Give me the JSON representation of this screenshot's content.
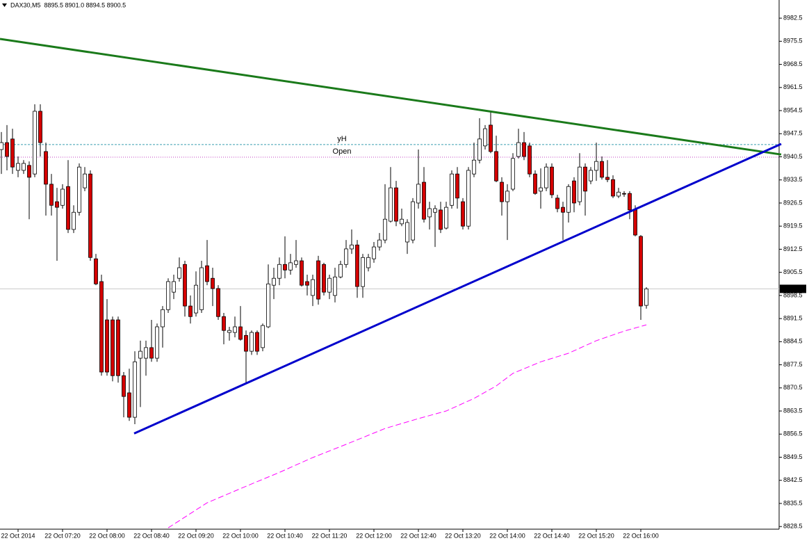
{
  "chart_data": {
    "type": "candlestick",
    "header": "DAX30,M5  8895.5 8901.0 8894.5 8900.5",
    "up_color": "#ffffff",
    "down_color": "#d40000",
    "open": [
      8942.7,
      8944.8,
      8945.9,
      8936.4,
      8936.4,
      8937.9,
      8935.3,
      8954.3,
      8942.1,
      8932.2,
      8926.9,
      8925.8,
      8931.5,
      8918.5,
      8923.7,
      8931.1,
      8935.3,
      8909.6,
      8902.7,
      8891.1,
      8891.1,
      8891.1,
      8874.2,
      8869.0,
      8861.6,
      8879.5,
      8879.5,
      8882.7,
      8879.5,
      8889.0,
      8894.2,
      8899.5,
      8903.7,
      8907.9,
      8895.3,
      8893.2,
      8894.2,
      8907.5,
      8903.7,
      8900.6,
      8892.1,
      8887.3,
      8887.3,
      8889.0,
      8886.4,
      8881.6,
      8887.3,
      8882.7,
      8889.0,
      8901.6,
      8903.7,
      8907.9,
      8906.2,
      8907.9,
      8909.0,
      8902.7,
      8898.5,
      8909.0,
      8907.9,
      8899.5,
      8898.5,
      8904.1,
      8907.9,
      8912.6,
      8913.8,
      8901.2,
      8906.9,
      8909.6,
      8913.2,
      8915.3,
      8921.0,
      8931.1,
      8920.2,
      8914.7,
      8915.3,
      8926.5,
      8932.8,
      8922.3,
      8923.7,
      8924.4,
      8918.9,
      8925.8,
      8935.3,
      8926.9,
      8919.5,
      8935.3,
      8939.5,
      8943.8,
      8950.1,
      8942.1,
      8932.8,
      8926.9,
      8930.7,
      8940.6,
      8944.8,
      8943.8,
      8935.3,
      8930.1,
      8931.1,
      8937.4,
      8928.0,
      8925.2,
      8923.7,
      8933.2,
      8926.9,
      8937.4,
      8933.2,
      8936.4,
      8939.1,
      8934.3,
      8933.6,
      8928.6,
      8929.4,
      8929.4,
      8924.4,
      8916.4,
      8895.5
    ],
    "high": [
      8948.0,
      8950.1,
      8949.0,
      8940.6,
      8939.5,
      8939.1,
      8956.4,
      8956.4,
      8944.8,
      8935.3,
      8931.1,
      8932.2,
      8939.5,
      8925.8,
      8938.5,
      8937.4,
      8936.4,
      8911.1,
      8904.8,
      8897.4,
      8892.1,
      8892.1,
      8875.3,
      8876.3,
      8881.6,
      8884.8,
      8884.8,
      8891.1,
      8890.0,
      8895.3,
      8903.7,
      8904.8,
      8910.0,
      8909.0,
      8898.5,
      8905.8,
      8909.0,
      8915.3,
      8906.9,
      8901.6,
      8893.2,
      8889.0,
      8892.1,
      8895.3,
      8887.9,
      8887.9,
      8887.9,
      8890.0,
      8907.9,
      8906.9,
      8910.0,
      8916.4,
      8911.1,
      8915.3,
      8910.0,
      8904.8,
      8904.8,
      8910.5,
      8908.4,
      8904.8,
      8906.9,
      8909.0,
      8915.3,
      8918.5,
      8915.3,
      8911.1,
      8911.1,
      8914.7,
      8917.4,
      8932.2,
      8937.4,
      8933.2,
      8924.8,
      8921.6,
      8928.0,
      8942.7,
      8937.4,
      8926.9,
      8925.8,
      8926.9,
      8926.9,
      8936.4,
      8937.4,
      8928.0,
      8937.4,
      8944.8,
      8952.2,
      8950.1,
      8954.3,
      8946.9,
      8934.3,
      8932.2,
      8941.6,
      8949.0,
      8948.0,
      8944.8,
      8936.4,
      8937.0,
      8938.5,
      8938.5,
      8929.0,
      8926.9,
      8932.2,
      8934.3,
      8941.6,
      8938.5,
      8937.4,
      8944.8,
      8940.6,
      8939.5,
      8934.9,
      8931.1,
      8930.1,
      8930.1,
      8925.8,
      8916.8,
      8901.0
    ],
    "low": [
      8935.3,
      8936.4,
      8935.3,
      8934.3,
      8935.3,
      8921.6,
      8934.3,
      8940.6,
      8922.7,
      8922.7,
      8909.0,
      8924.8,
      8917.4,
      8917.4,
      8922.7,
      8930.1,
      8909.0,
      8901.6,
      8874.2,
      8874.2,
      8872.5,
      8872.1,
      8861.6,
      8860.5,
      8859.5,
      8864.7,
      8874.2,
      8878.4,
      8878.4,
      8882.7,
      8893.2,
      8897.4,
      8902.7,
      8892.1,
      8890.0,
      8892.1,
      8893.2,
      8901.6,
      8895.3,
      8891.1,
      8883.7,
      8884.8,
      8885.8,
      8884.8,
      8872.1,
      8880.5,
      8880.5,
      8881.6,
      8888.6,
      8897.4,
      8901.6,
      8903.7,
      8904.8,
      8906.9,
      8901.2,
      8898.5,
      8895.3,
      8895.7,
      8898.5,
      8897.4,
      8896.4,
      8903.7,
      8906.9,
      8911.1,
      8897.8,
      8897.8,
      8905.8,
      8908.4,
      8912.1,
      8914.3,
      8920.6,
      8919.5,
      8919.5,
      8911.1,
      8914.3,
      8924.8,
      8920.6,
      8918.5,
      8913.2,
      8917.4,
      8918.5,
      8924.8,
      8924.8,
      8918.5,
      8918.5,
      8934.3,
      8938.5,
      8942.7,
      8941.6,
      8932.8,
      8922.7,
      8915.3,
      8930.1,
      8940.0,
      8939.5,
      8934.3,
      8929.0,
      8924.8,
      8930.1,
      8928.0,
      8923.7,
      8915.3,
      8920.6,
      8923.7,
      8925.8,
      8922.7,
      8932.2,
      8933.2,
      8933.6,
      8932.8,
      8928.0,
      8928.0,
      8928.4,
      8921.6,
      8916.4,
      8891.1,
      8894.5
    ],
    "close": [
      8944.8,
      8940.6,
      8937.4,
      8938.5,
      8938.5,
      8934.3,
      8954.3,
      8944.8,
      8932.2,
      8925.8,
      8925.2,
      8930.7,
      8918.5,
      8923.7,
      8937.4,
      8935.3,
      8910.0,
      8902.0,
      8875.3,
      8875.3,
      8874.2,
      8874.2,
      8867.9,
      8861.6,
      8878.4,
      8881.6,
      8882.7,
      8879.5,
      8889.0,
      8894.2,
      8902.7,
      8902.7,
      8906.9,
      8895.3,
      8892.1,
      8901.6,
      8906.9,
      8902.7,
      8900.6,
      8892.1,
      8887.9,
      8887.9,
      8889.0,
      8885.2,
      8881.6,
      8887.3,
      8881.6,
      8889.4,
      8902.0,
      8903.7,
      8907.9,
      8906.2,
      8908.4,
      8909.0,
      8901.6,
      8901.6,
      8903.3,
      8897.4,
      8899.5,
      8903.7,
      8904.1,
      8907.9,
      8912.6,
      8913.8,
      8901.2,
      8910.0,
      8910.0,
      8913.2,
      8915.3,
      8921.6,
      8931.1,
      8921.0,
      8921.6,
      8920.6,
      8926.9,
      8932.2,
      8921.6,
      8924.8,
      8924.8,
      8918.5,
      8925.2,
      8935.3,
      8928.0,
      8919.5,
      8936.4,
      8939.5,
      8945.9,
      8949.0,
      8942.1,
      8933.2,
      8926.9,
      8930.1,
      8940.0,
      8944.8,
      8940.6,
      8935.3,
      8929.4,
      8931.1,
      8937.4,
      8929.0,
      8924.8,
      8923.7,
      8931.5,
      8926.5,
      8937.4,
      8930.1,
      8936.4,
      8939.1,
      8934.3,
      8933.6,
      8928.6,
      8929.8,
      8929.2,
      8924.4,
      8916.8,
      8895.3,
      8900.5
    ],
    "xlim": [
      -0.25,
      139.875
    ],
    "xticks": [
      {
        "value": 3,
        "label": "22 Oct 2014"
      },
      {
        "value": 11,
        "label": "22 Oct 07:20"
      },
      {
        "value": 19,
        "label": "22 Oct 08:00"
      },
      {
        "value": 27,
        "label": "22 Oct 08:40"
      },
      {
        "value": 35,
        "label": "22 Oct 09:20"
      },
      {
        "value": 43,
        "label": "22 Oct 10:00"
      },
      {
        "value": 51,
        "label": "22 Oct 10:40"
      },
      {
        "value": 59,
        "label": "22 Oct 11:20"
      },
      {
        "value": 67,
        "label": "22 Oct 12:00"
      },
      {
        "value": 75,
        "label": "22 Oct 12:40"
      },
      {
        "value": 83,
        "label": "22 Oct 13:20"
      },
      {
        "value": 91,
        "label": "22 Oct 14:00"
      },
      {
        "value": 99,
        "label": "22 Oct 14:40"
      },
      {
        "value": 107,
        "label": "22 Oct 15:20"
      },
      {
        "value": 115,
        "label": "22 Oct 16:00"
      }
    ],
    "ylim": [
      8827.7,
      8988.0
    ],
    "yticks": [
      8982.5,
      8975.5,
      8968.5,
      8961.5,
      8954.5,
      8947.5,
      8940.5,
      8933.5,
      8926.5,
      8919.5,
      8912.5,
      8905.5,
      8898.5,
      8891.5,
      8884.5,
      8877.5,
      8870.5,
      8863.5,
      8856.5,
      8849.5,
      8842.5,
      8835.5,
      8828.5
    ],
    "current_price": 8900.5,
    "levels": [
      {
        "label": "yH",
        "value": 8944.2,
        "color": "#3a9fb0"
      },
      {
        "label": "Open",
        "value": 8940.4,
        "color": "#c040c0"
      }
    ],
    "trendlines": [
      {
        "color": "#1a7a1a",
        "x": [
          -0.25,
          140.25
        ],
        "values": [
          8976.2,
          8941.2
        ]
      },
      {
        "color": "#0000cc",
        "x": [
          23.875,
          140.25
        ],
        "values": [
          8856.7,
          8944.4
        ]
      }
    ],
    "moving_average": {
      "color": "#ff00ff",
      "x": [
        30,
        37,
        44,
        50,
        56,
        62,
        69,
        75,
        80,
        85,
        89,
        92,
        97,
        102,
        107,
        112,
        116
      ],
      "values": [
        8828.1,
        8835.7,
        8840.7,
        8844.9,
        8849.4,
        8853.4,
        8858.2,
        8861.2,
        8863.5,
        8867.3,
        8871.1,
        8874.9,
        8878.4,
        8881.0,
        8884.8,
        8887.7,
        8889.6
      ]
    }
  }
}
